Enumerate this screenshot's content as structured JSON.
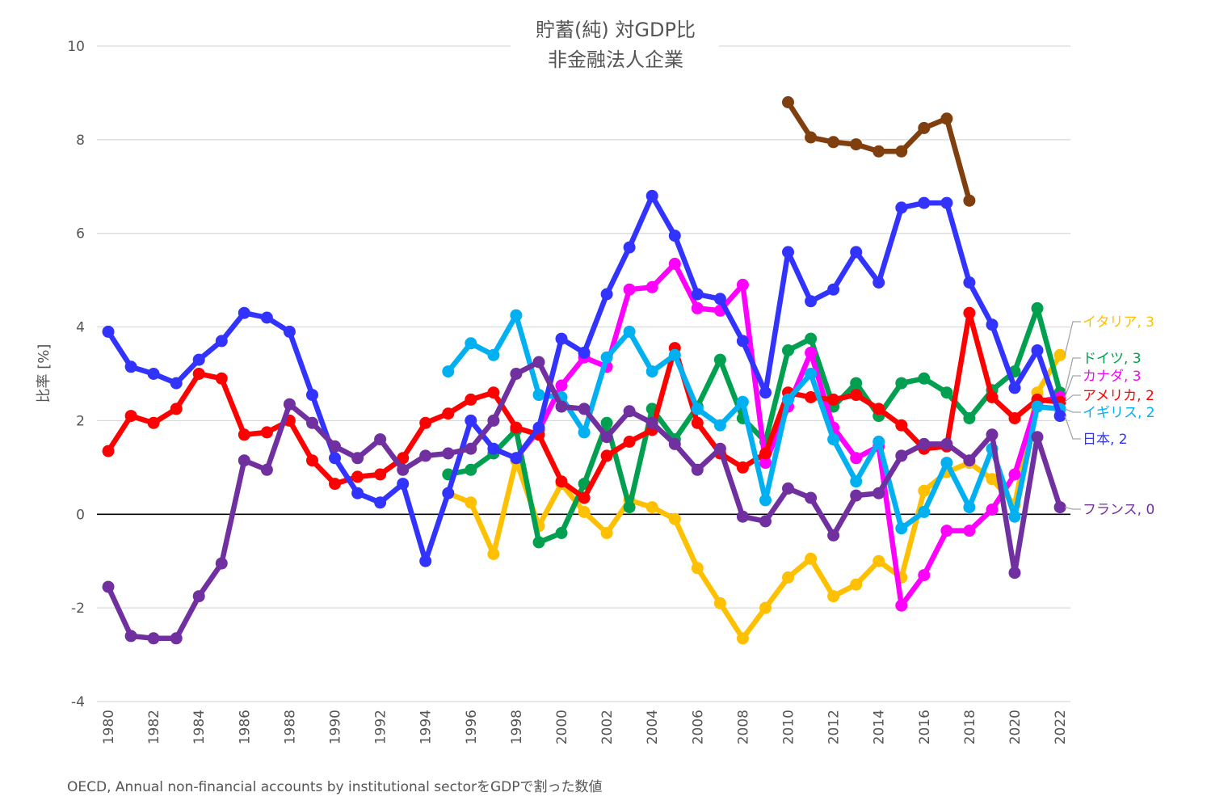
{
  "chart_data": {
    "type": "line",
    "title": [
      "貯蓄(純) 対GDP比",
      "非金融法人企業"
    ],
    "ylabel": "比率 [%]",
    "xlabel": "",
    "ylim": [
      -4,
      10
    ],
    "yticks": [
      -4,
      -2,
      0,
      2,
      4,
      6,
      8,
      10
    ],
    "xlim": [
      1980,
      2022
    ],
    "xticks": [
      1980,
      1982,
      1984,
      1986,
      1988,
      1990,
      1992,
      1994,
      1996,
      1998,
      2000,
      2002,
      2004,
      2006,
      2008,
      2010,
      2012,
      2014,
      2016,
      2018,
      2020,
      2022
    ],
    "grid": true,
    "source": "OECD, Annual non-financial accounts by institutional sectorをGDPで割った数値",
    "series": [
      {
        "name": "イタリア",
        "color": "#FFC000",
        "end_label": "イタリア, 3",
        "x_start": 1995,
        "values": [
          0.45,
          0.25,
          -0.85,
          1.15,
          -0.25,
          0.65,
          0.05,
          -0.4,
          0.3,
          0.15,
          -0.1,
          -1.15,
          -1.9,
          -2.65,
          -2.0,
          -1.35,
          -0.95,
          -1.75,
          -1.5,
          -1.0,
          -1.35,
          0.5,
          0.9,
          1.1,
          0.75,
          0.2,
          2.6,
          3.4
        ]
      },
      {
        "name": "ドイツ",
        "color": "#00A050",
        "end_label": "ドイツ, 3",
        "x_start": 1995,
        "values": [
          0.85,
          0.95,
          1.3,
          1.8,
          -0.6,
          -0.4,
          0.65,
          1.95,
          0.15,
          2.25,
          1.6,
          2.3,
          3.3,
          2.05,
          1.55,
          3.5,
          3.75,
          2.3,
          2.8,
          2.1,
          2.8,
          2.9,
          2.6,
          2.05,
          2.65,
          3.05,
          4.4,
          2.6
        ]
      },
      {
        "name": "カナダ",
        "color": "#FF00FF",
        "end_label": "カナダ, 3",
        "x_start": 1998,
        "values": [
          1.2,
          1.8,
          2.75,
          3.35,
          3.15,
          4.8,
          4.85,
          5.35,
          4.4,
          4.35,
          4.9,
          1.1,
          2.3,
          3.45,
          1.85,
          1.2,
          1.45,
          -1.95,
          -1.3,
          -0.35,
          -0.35,
          0.1,
          0.85,
          2.4,
          2.5
        ]
      },
      {
        "name": "アメリカ",
        "color": "#FF0000",
        "end_label": "アメリカ, 2",
        "x_start": 1980,
        "values": [
          1.35,
          2.1,
          1.95,
          2.25,
          3.0,
          2.9,
          1.7,
          1.75,
          2.0,
          1.15,
          0.65,
          0.8,
          0.85,
          1.2,
          1.95,
          2.15,
          2.45,
          2.6,
          1.85,
          1.7,
          0.7,
          0.35,
          1.25,
          1.55,
          1.8,
          3.55,
          1.95,
          1.3,
          1.0,
          1.3,
          2.6,
          2.5,
          2.45,
          2.55,
          2.25,
          1.9,
          1.4,
          1.45,
          4.3,
          2.5,
          2.05,
          2.45,
          2.4
        ]
      },
      {
        "name": "イギリス",
        "color": "#00B0F0",
        "end_label": "イギリス, 2",
        "x_start": 1995,
        "values": [
          3.05,
          3.65,
          3.4,
          4.25,
          2.55,
          2.5,
          1.75,
          3.35,
          3.9,
          3.05,
          3.4,
          2.25,
          1.9,
          2.4,
          0.3,
          2.45,
          3.0,
          1.6,
          0.7,
          1.55,
          -0.3,
          0.05,
          1.1,
          0.15,
          1.4,
          -0.05,
          2.3,
          2.25
        ]
      },
      {
        "name": "日本",
        "color": "#3333FF",
        "end_label": "日本, 2",
        "x_start": 1980,
        "values": [
          3.9,
          3.15,
          3.0,
          2.8,
          3.3,
          3.7,
          4.3,
          4.2,
          3.9,
          2.55,
          1.2,
          0.45,
          0.25,
          0.65,
          -1.0,
          0.45,
          2.0,
          1.4,
          1.2,
          1.85,
          3.75,
          3.45,
          4.7,
          5.7,
          6.8,
          5.95,
          4.7,
          4.6,
          3.7,
          2.6,
          5.6,
          4.55,
          4.8,
          5.6,
          4.95,
          6.55,
          6.65,
          6.65,
          4.95,
          4.05,
          2.7,
          3.5,
          2.1
        ]
      },
      {
        "name": "フランス",
        "color": "#7030A0",
        "end_label": "フランス, 0",
        "x_start": 1980,
        "values": [
          -1.55,
          -2.6,
          -2.65,
          -2.65,
          -1.75,
          -1.05,
          1.15,
          0.95,
          2.35,
          1.95,
          1.45,
          1.2,
          1.6,
          0.95,
          1.25,
          1.3,
          1.4,
          2.0,
          3.0,
          3.25,
          2.3,
          2.25,
          1.65,
          2.2,
          1.95,
          1.5,
          0.95,
          1.4,
          -0.05,
          -0.15,
          0.55,
          0.35,
          -0.45,
          0.4,
          0.45,
          1.25,
          1.5,
          1.5,
          1.15,
          1.7,
          -1.25,
          1.65,
          0.15
        ]
      },
      {
        "name": "",
        "color": "#7F3F0F",
        "end_label": "",
        "x_start": 2010,
        "values": [
          8.8,
          8.05,
          7.95,
          7.9,
          7.75,
          7.75,
          8.25,
          8.45,
          6.7
        ]
      }
    ]
  }
}
